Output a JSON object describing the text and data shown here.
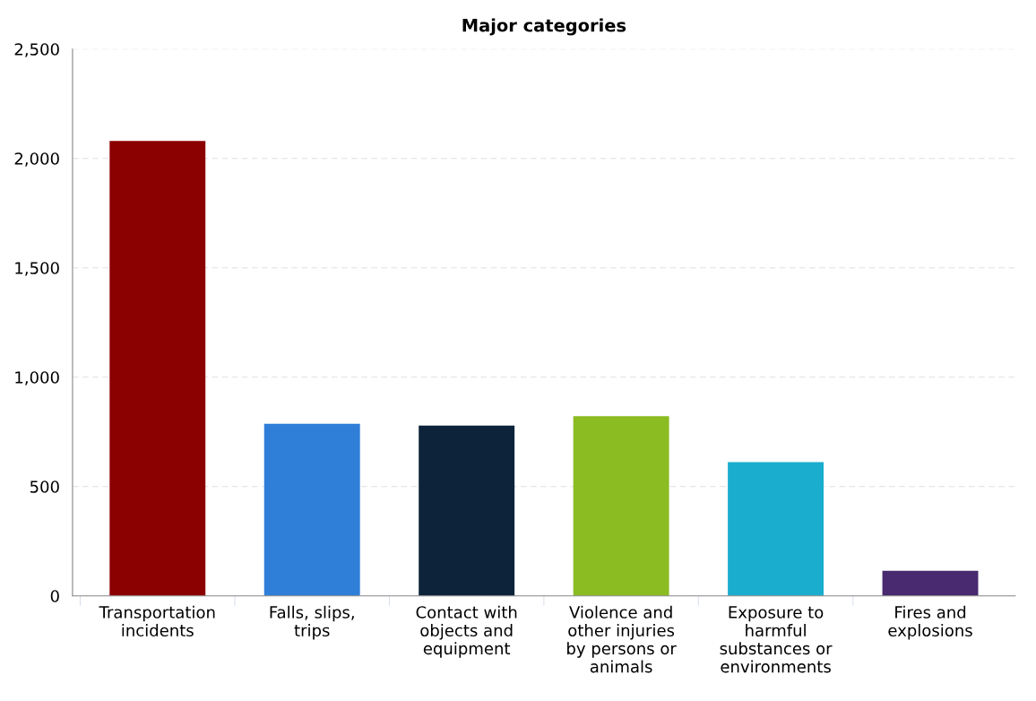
{
  "chart_data": {
    "type": "bar",
    "title": "Major categories",
    "categories": [
      "Transportation incidents",
      "Falls, slips, trips",
      "Contact with objects and equipment",
      "Violence and other injuries by persons or animals",
      "Exposure to harmful substances or environments",
      "Fires and explosions"
    ],
    "values": [
      2080,
      787,
      779,
      822,
      612,
      115
    ],
    "colors": [
      "#8b0000",
      "#2f7ed8",
      "#0d233a",
      "#8bbc21",
      "#1aadce",
      "#492970"
    ],
    "ylim": [
      0,
      2500
    ],
    "yticks": [
      0,
      {
        "value": 500,
        "label": "500"
      },
      {
        "value": 1000,
        "label": "1,000"
      },
      {
        "value": 1500,
        "label": "1,500"
      },
      {
        "value": 2000,
        "label": "2,000"
      },
      {
        "value": 2500,
        "label": "2,500"
      }
    ],
    "grid": "y"
  }
}
